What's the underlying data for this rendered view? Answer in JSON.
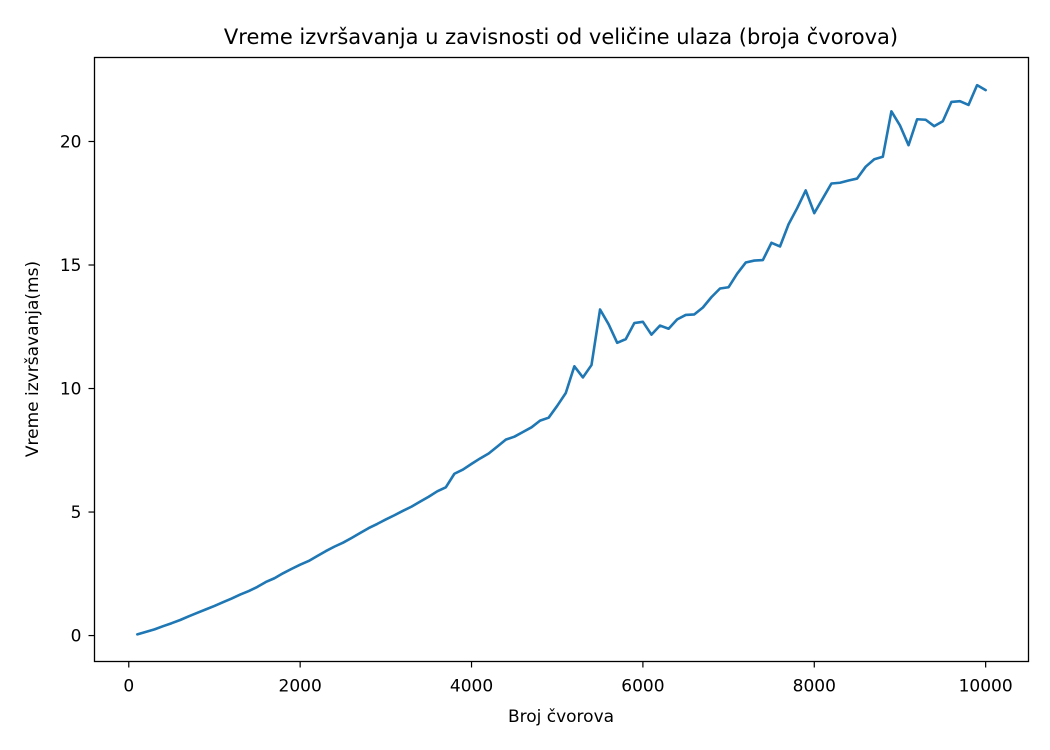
{
  "chart_data": {
    "type": "line",
    "title": "Vreme izvršavanja u zavisnosti od veličine ulaza (broja čvorova)",
    "xlabel": "Broj čvorova",
    "ylabel": "Vreme izvršavanja(ms)",
    "xlim": [
      -400,
      10500
    ],
    "ylim": [
      -1.05,
      23.4
    ],
    "xticks": [
      0,
      2000,
      4000,
      6000,
      8000,
      10000
    ],
    "yticks": [
      0,
      5,
      10,
      15,
      20
    ],
    "grid": false,
    "color": "#1f77b4",
    "series": [
      {
        "x": [
          100,
          200,
          300,
          400,
          500,
          600,
          700,
          800,
          900,
          1000,
          1100,
          1200,
          1300,
          1400,
          1500,
          1600,
          1700,
          1800,
          1900,
          2000,
          2100,
          2200,
          2300,
          2400,
          2500,
          2600,
          2700,
          2800,
          2900,
          3000,
          3100,
          3200,
          3300,
          3400,
          3500,
          3600,
          3700,
          3800,
          3900,
          4000,
          4100,
          4200,
          4300,
          4400,
          4500,
          4600,
          4700,
          4800,
          4900,
          5000,
          5100,
          5200,
          5300,
          5400,
          5500,
          5600,
          5700,
          5800,
          5900,
          6000,
          6100,
          6200,
          6300,
          6400,
          6500,
          6600,
          6700,
          6800,
          6900,
          7000,
          7100,
          7200,
          7300,
          7400,
          7500,
          7600,
          7700,
          7800,
          7900,
          8000,
          8100,
          8200,
          8300,
          8400,
          8500,
          8600,
          8700,
          8800,
          8900,
          9000,
          9100,
          9200,
          9300,
          9400,
          9500,
          9600,
          9700,
          9800,
          9900,
          10000
        ],
        "values": [
          0.05,
          0.15,
          0.25,
          0.38,
          0.5,
          0.63,
          0.78,
          0.92,
          1.06,
          1.2,
          1.35,
          1.5,
          1.66,
          1.8,
          1.97,
          2.17,
          2.32,
          2.52,
          2.7,
          2.87,
          3.02,
          3.22,
          3.42,
          3.6,
          3.76,
          3.95,
          4.15,
          4.35,
          4.52,
          4.7,
          4.87,
          5.05,
          5.22,
          5.42,
          5.62,
          5.84,
          6.0,
          6.55,
          6.72,
          6.95,
          7.17,
          7.37,
          7.65,
          7.93,
          8.05,
          8.24,
          8.43,
          8.7,
          8.82,
          9.3,
          9.82,
          10.9,
          10.45,
          10.95,
          13.2,
          12.6,
          11.85,
          12.0,
          12.65,
          12.7,
          12.18,
          12.55,
          12.42,
          12.8,
          12.98,
          13.0,
          13.28,
          13.7,
          14.05,
          14.1,
          14.65,
          15.1,
          15.18,
          15.2,
          15.9,
          15.75,
          16.65,
          17.3,
          18.02,
          17.1,
          17.7,
          18.3,
          18.33,
          18.42,
          18.5,
          18.98,
          19.28,
          19.38,
          21.22,
          20.65,
          19.85,
          20.9,
          20.88,
          20.62,
          20.82,
          21.6,
          21.63,
          21.48,
          22.28,
          22.08
        ]
      }
    ]
  }
}
